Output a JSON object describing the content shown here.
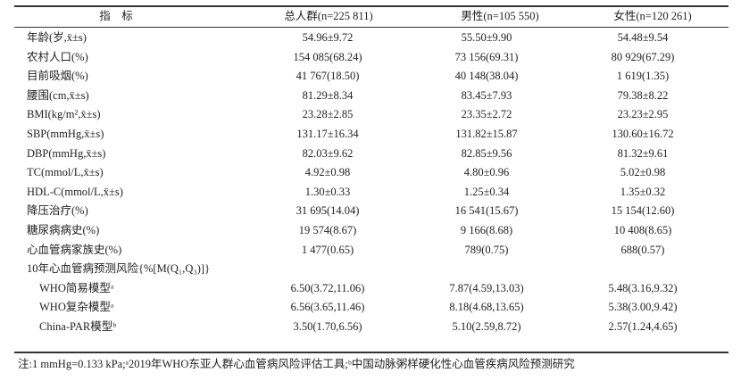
{
  "table": {
    "header": [
      "指　标",
      "总人群(n=225 811)",
      "男性(n=105 550)",
      "女性(n=120 261)"
    ],
    "rows": [
      [
        "年龄(岁,x̄±s)",
        "54.96±9.72",
        "55.50±9.90",
        "54.48±9.54"
      ],
      [
        "农村人口(%)",
        "154 085(68.24)",
        "73 156(69.31)",
        "80 929(67.29)"
      ],
      [
        "目前吸烟(%)",
        "41 767(18.50)",
        "40 148(38.04)",
        "1 619(1.35)"
      ],
      [
        "腰围(cm,x̄±s)",
        "81.29±8.34",
        "83.45±7.93",
        "79.38±8.22"
      ],
      [
        "BMI(kg/m²,x̄±s)",
        "23.28±2.85",
        "23.35±2.72",
        "23.23±2.95"
      ],
      [
        "SBP(mmHg,x̄±s)",
        "131.17±16.34",
        "131.82±15.87",
        "130.60±16.72"
      ],
      [
        "DBP(mmHg,x̄±s)",
        "82.03±9.62",
        "82.85±9.56",
        "81.32±9.61"
      ],
      [
        "TC(mmol/L,x̄±s)",
        "4.92±0.98",
        "4.80±0.96",
        "5.02±0.98"
      ],
      [
        "HDL-C(mmol/L,x̄±s)",
        "1.30±0.33",
        "1.25±0.34",
        "1.35±0.32"
      ],
      [
        "降压治疗(%)",
        "31 695(14.04)",
        "16 541(15.67)",
        "15 154(12.60)"
      ],
      [
        "糖尿病病史(%)",
        "19 574(8.67)",
        "9 166(8.68)",
        "10 408(8.65)"
      ],
      [
        "心血管病家族史(%)",
        "1 477(0.65)",
        "789(0.75)",
        "688(0.57)"
      ],
      [
        "10年心血管病预测风险{%[M(Q₁,Q₃)]}"
      ],
      [
        "WHO简易模型ᵃ",
        "6.50(3.72,11.06)",
        "7.87(4.59,13.03)",
        "5.48(3.16,9.32)"
      ],
      [
        "WHO复杂模型ᵃ",
        "6.56(3.65,11.46)",
        "8.18(4.68,13.65)",
        "5.38(3.00,9.42)"
      ],
      [
        "China-PAR模型ᵇ",
        "3.50(1.70,6.56)",
        "5.10(2.59,8.72)",
        "2.57(1.24,4.65)"
      ]
    ],
    "note": "注:1 mmHg=0.133 kPa;ᵃ2019年WHO东亚人群心血管病风险评估工具;ᵇ中国动脉粥样硬化性心血管疾病风险预测研究"
  }
}
